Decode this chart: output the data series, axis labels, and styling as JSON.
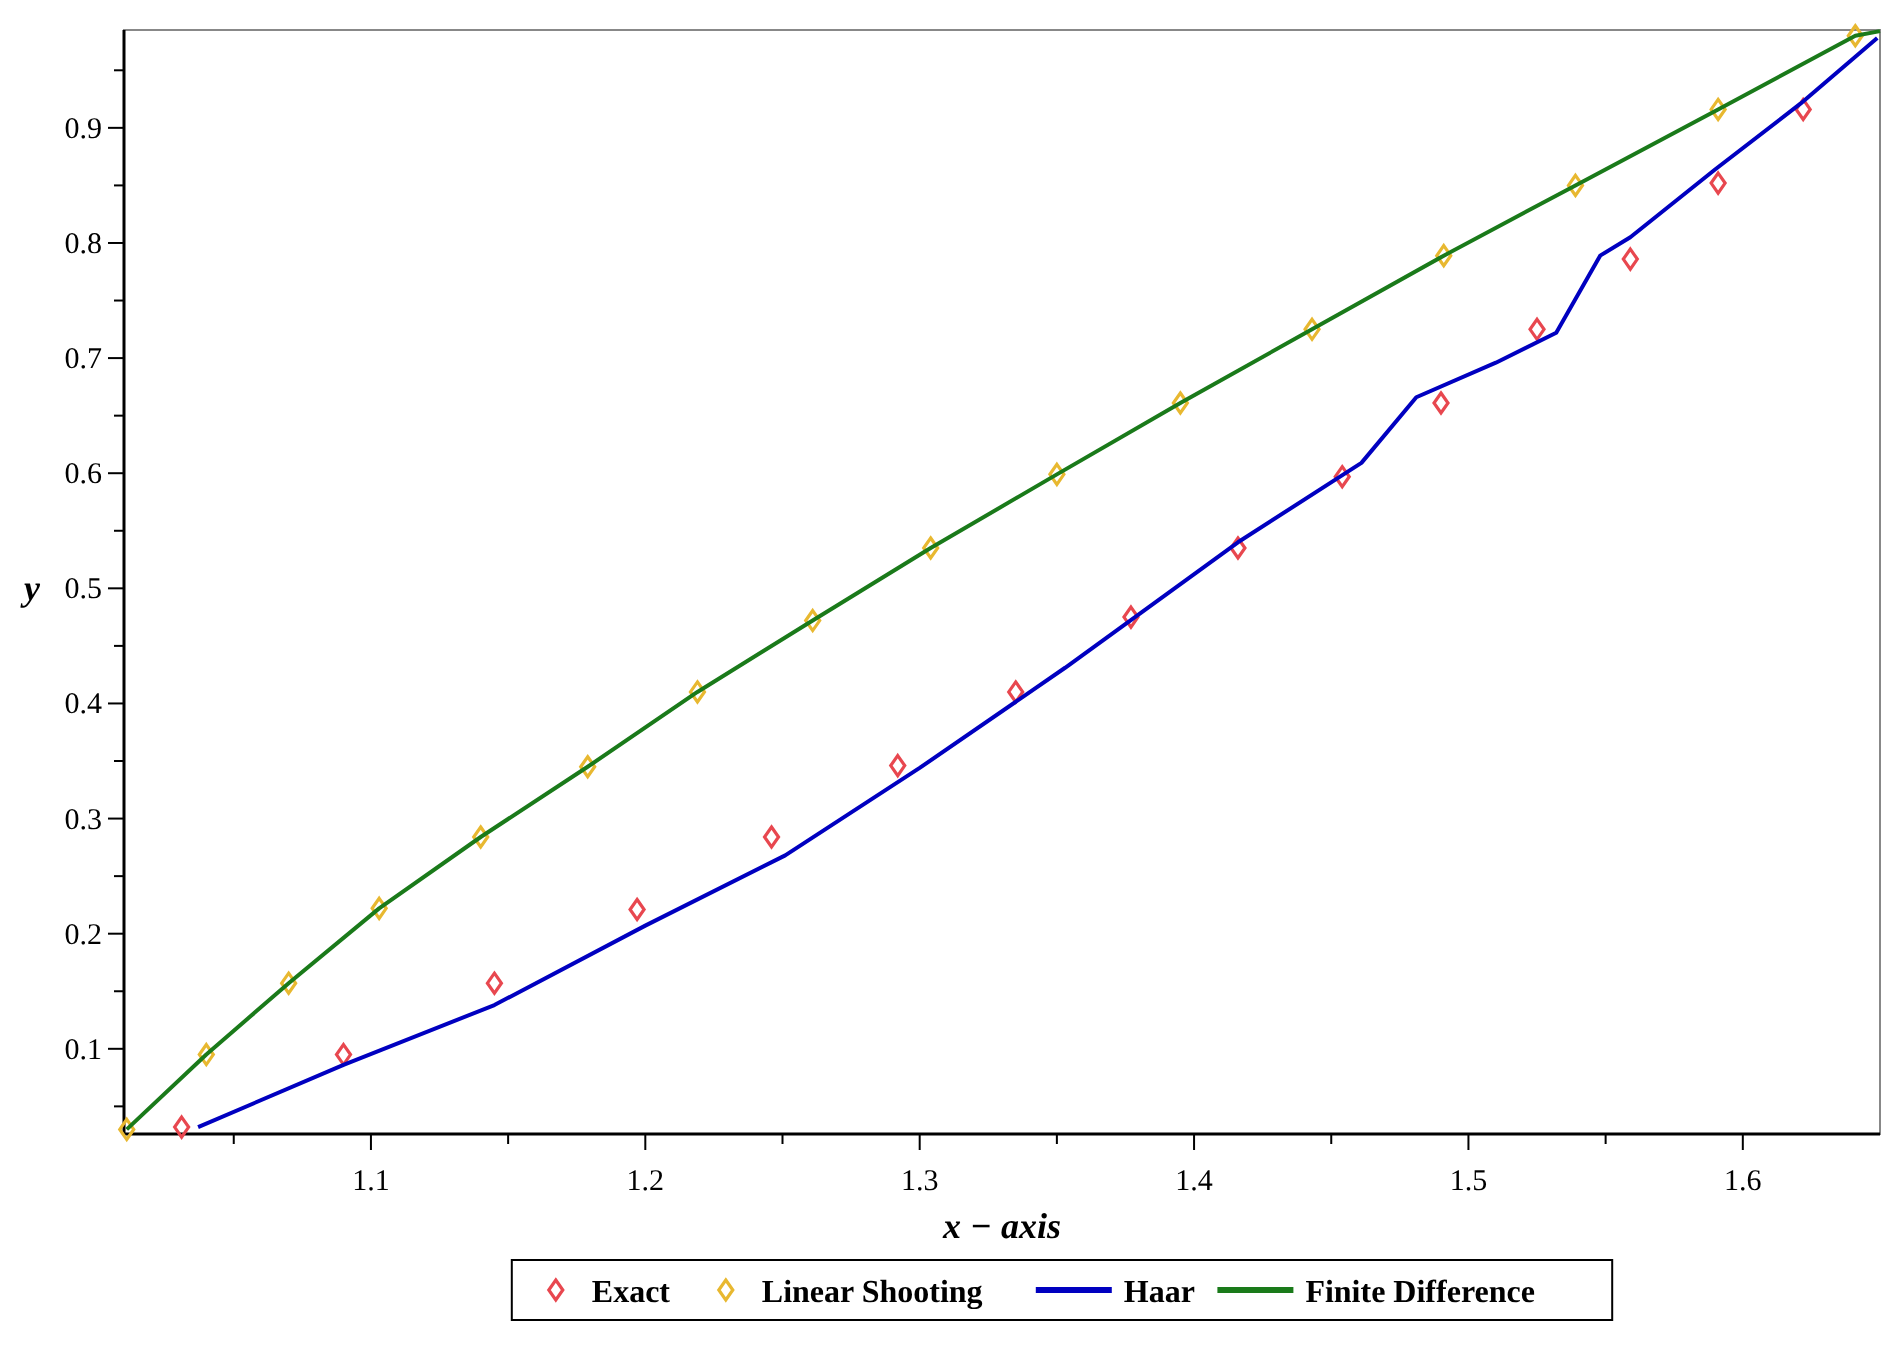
{
  "chart_data": {
    "type": "line",
    "xlabel": "x − axis",
    "ylabel": "y",
    "xlim": [
      1.01,
      1.65
    ],
    "ylim": [
      0.026,
      0.985
    ],
    "xticks": [
      {
        "value": 1.05,
        "label": null
      },
      1.1,
      {
        "value": 1.15,
        "label": null
      },
      1.2,
      {
        "value": 1.25,
        "label": null
      },
      1.3,
      {
        "value": 1.35,
        "label": null
      },
      1.4,
      {
        "value": 1.45,
        "label": null
      },
      1.5,
      {
        "value": 1.55,
        "label": null
      },
      1.6
    ],
    "yticks": [
      {
        "value": 0.05,
        "label": null
      },
      0.1,
      {
        "value": 0.15,
        "label": null
      },
      0.2,
      {
        "value": 0.25,
        "label": null
      },
      0.3,
      {
        "value": 0.35,
        "label": null
      },
      0.4,
      {
        "value": 0.45,
        "label": null
      },
      0.5,
      {
        "value": 0.55,
        "label": null
      },
      0.6,
      {
        "value": 0.65,
        "label": null
      },
      0.7,
      {
        "value": 0.75,
        "label": null
      },
      0.8,
      {
        "value": 0.85,
        "label": null
      },
      0.9,
      {
        "value": 0.95,
        "label": null
      }
    ],
    "grid": false,
    "legend": "bottom",
    "series": [
      {
        "name": "Exact",
        "type": "scatter",
        "marker": "diamond",
        "color": "#e8474f",
        "x": [
          1.031,
          1.09,
          1.145,
          1.197,
          1.246,
          1.292,
          1.335,
          1.377,
          1.416,
          1.454,
          1.49,
          1.525,
          1.559,
          1.591,
          1.622
        ],
        "values": [
          0.032,
          0.095,
          0.157,
          0.221,
          0.284,
          0.346,
          0.41,
          0.475,
          0.535,
          0.597,
          0.661,
          0.725,
          0.786,
          0.852,
          0.916
        ]
      },
      {
        "name": "Linear Shooting",
        "type": "scatter",
        "marker": "diamond",
        "color": "#e8b830",
        "x": [
          1.011,
          1.04,
          1.07,
          1.103,
          1.14,
          1.179,
          1.219,
          1.261,
          1.304,
          1.35,
          1.395,
          1.443,
          1.491,
          1.539,
          1.591,
          1.641
        ],
        "values": [
          0.03,
          0.095,
          0.157,
          0.222,
          0.284,
          0.345,
          0.41,
          0.472,
          0.535,
          0.599,
          0.661,
          0.725,
          0.789,
          0.85,
          0.916,
          0.98
        ]
      },
      {
        "name": "Haar",
        "marker": "none",
        "color": "#0000c0",
        "x": [
          1.037,
          1.09,
          1.145,
          1.2,
          1.251,
          1.3,
          1.353,
          1.416,
          1.461,
          1.481,
          1.51,
          1.532,
          1.548,
          1.559,
          1.59,
          1.621,
          1.649
        ],
        "values": [
          0.032,
          0.086,
          0.138,
          0.207,
          0.268,
          0.344,
          0.431,
          0.54,
          0.609,
          0.666,
          0.696,
          0.722,
          0.789,
          0.805,
          0.864,
          0.921,
          0.978
        ]
      },
      {
        "name": "Finite Difference",
        "marker": "none",
        "color": "#1a7a1a",
        "x": [
          1.011,
          1.04,
          1.07,
          1.103,
          1.14,
          1.179,
          1.219,
          1.261,
          1.304,
          1.35,
          1.395,
          1.443,
          1.491,
          1.539,
          1.591,
          1.641,
          1.65
        ],
        "values": [
          0.03,
          0.095,
          0.157,
          0.222,
          0.284,
          0.345,
          0.41,
          0.472,
          0.535,
          0.599,
          0.661,
          0.725,
          0.789,
          0.85,
          0.916,
          0.98,
          0.984
        ]
      }
    ]
  }
}
